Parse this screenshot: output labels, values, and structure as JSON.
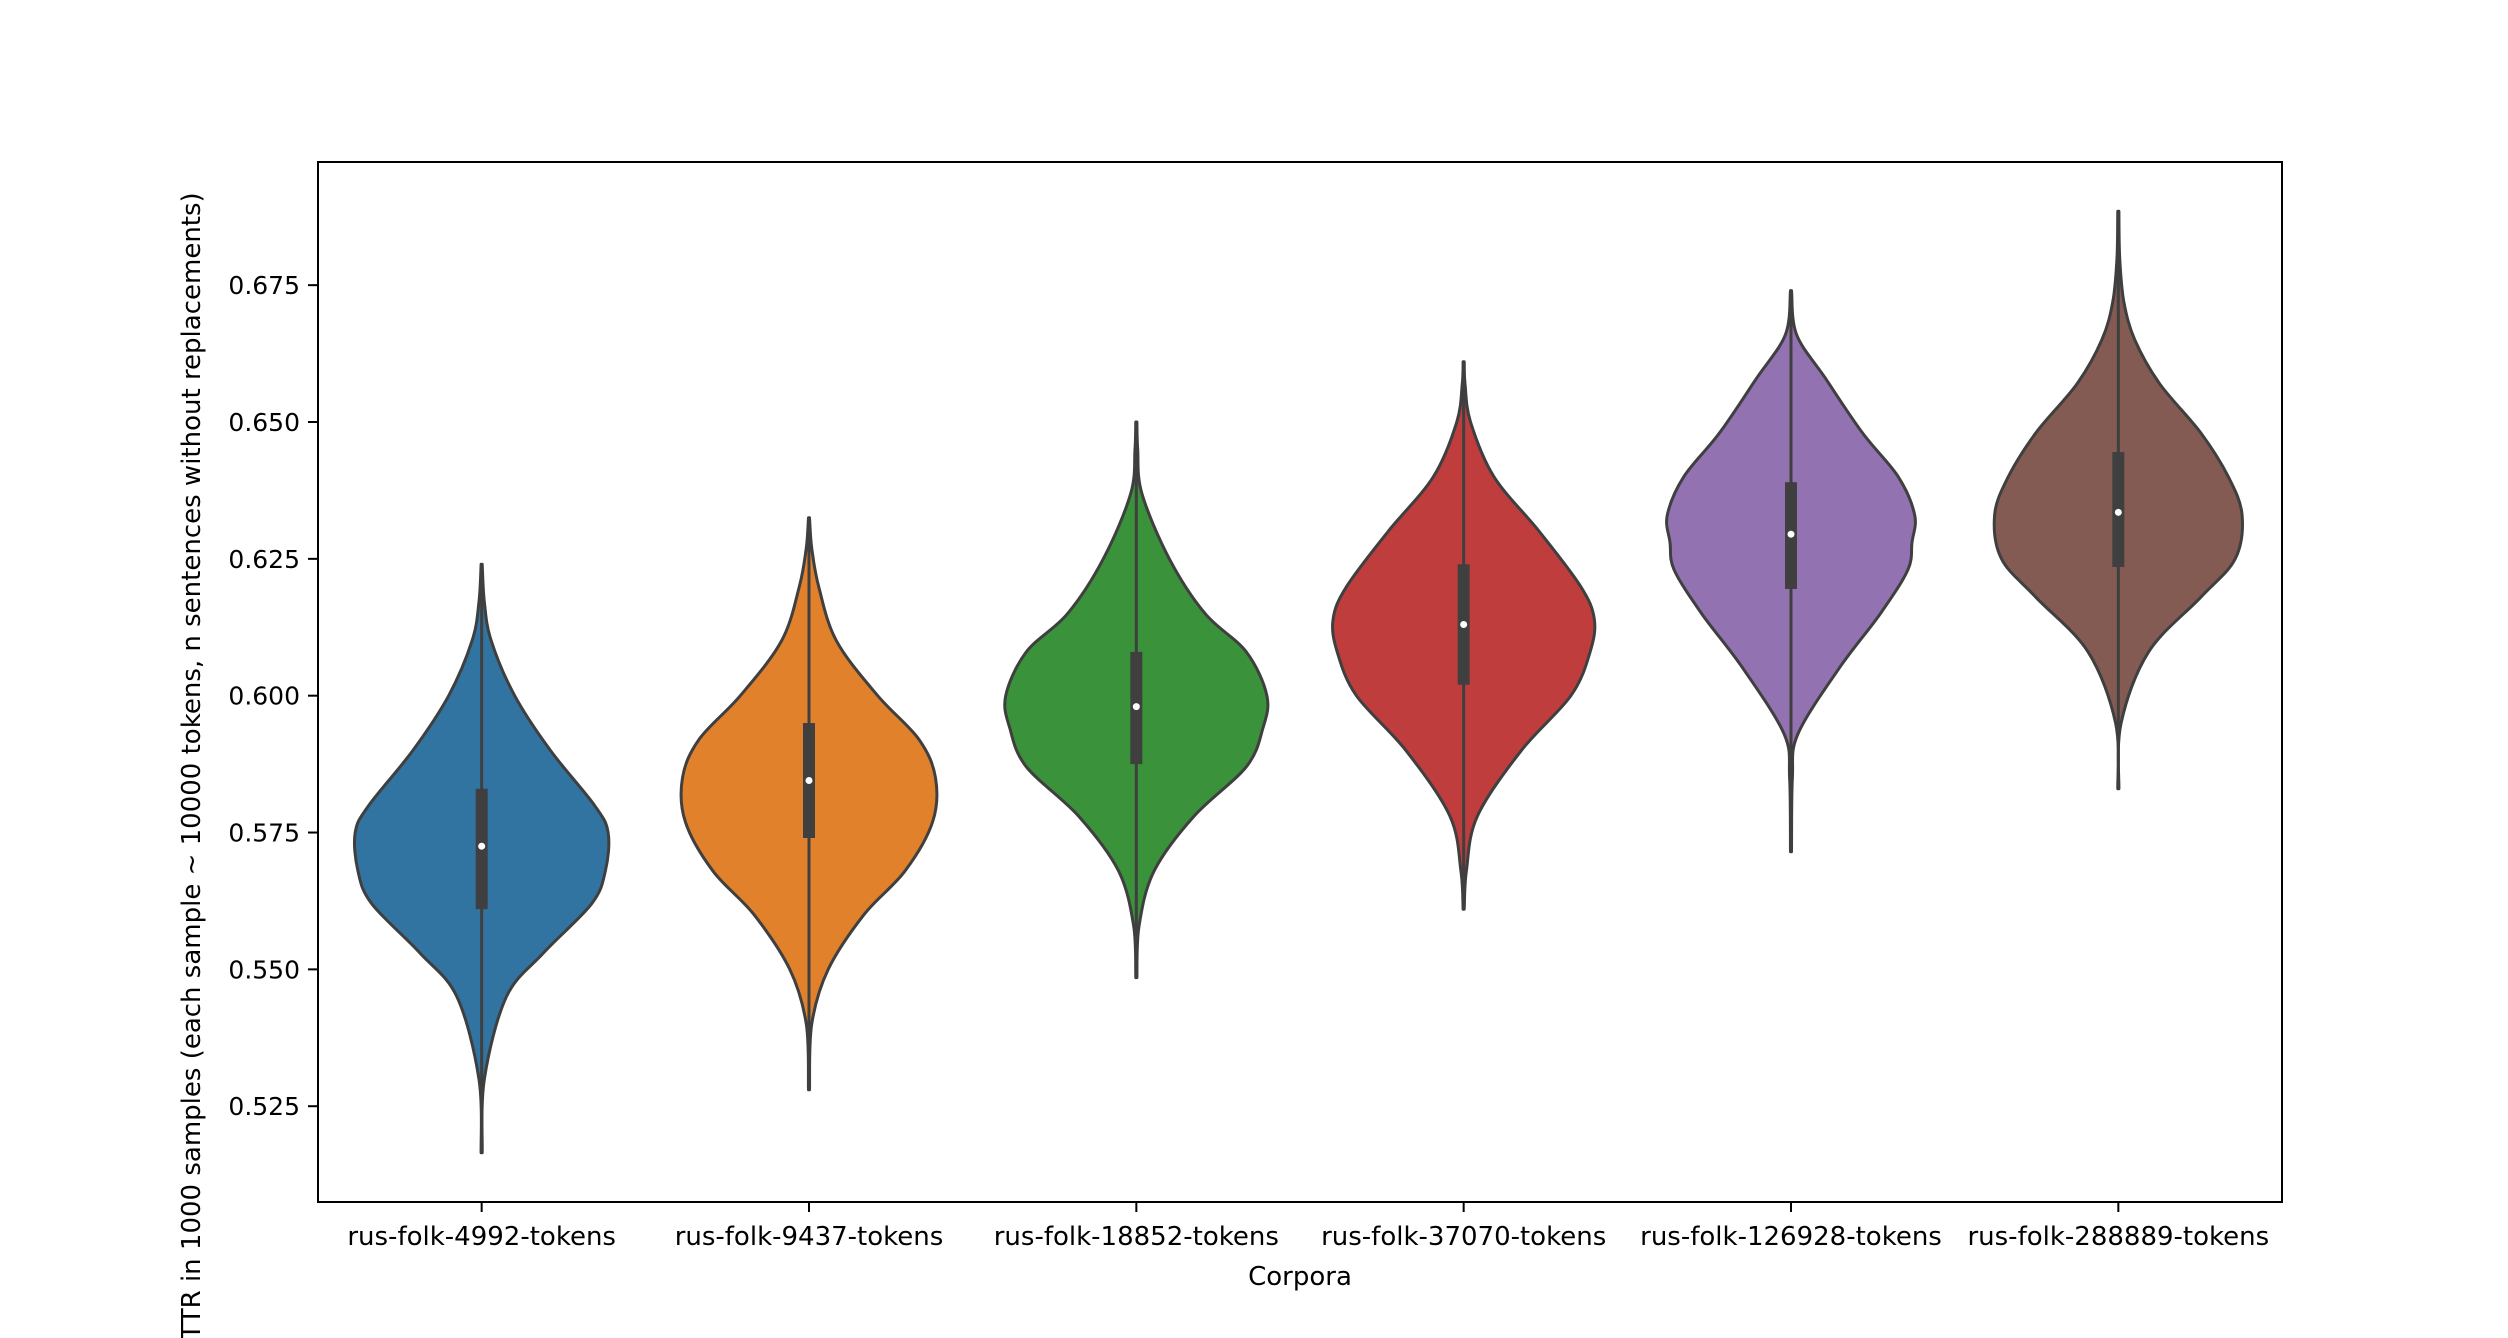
{
  "chart_data": {
    "type": "violin",
    "title": "",
    "xlabel": "Corpora",
    "ylabel": "TTR in 1000 samples (each sample ~ 10000 tokens, n sentences without replacements)",
    "ylim": [
      0.5075,
      0.6975
    ],
    "yticks": [
      0.525,
      0.55,
      0.575,
      0.6,
      0.625,
      0.65,
      0.675
    ],
    "ytick_labels": [
      "0.525",
      "0.550",
      "0.575",
      "0.600",
      "0.625",
      "0.650",
      "0.675"
    ],
    "grid": false,
    "legend": "none",
    "categories": [
      "rus-folk-4992-tokens",
      "rus-folk-9437-tokens",
      "rus-folk-18852-tokens",
      "rus-folk-37070-tokens",
      "rus-folk-126928-tokens",
      "rus-folk-288889-tokens"
    ],
    "colors": [
      "#3274a1",
      "#e1812c",
      "#3a923a",
      "#c03d3e",
      "#9372b2",
      "#845b53"
    ],
    "violins": [
      {
        "category": "rus-folk-4992-tokens",
        "min": 0.5165,
        "q1": 0.561,
        "median": 0.5725,
        "q3": 0.583,
        "max": 0.624,
        "profile": [
          [
            0.5165,
            0.004
          ],
          [
            0.53,
            0.02
          ],
          [
            0.545,
            0.18
          ],
          [
            0.553,
            0.45
          ],
          [
            0.562,
            0.8
          ],
          [
            0.568,
            0.9
          ],
          [
            0.575,
            0.92
          ],
          [
            0.58,
            0.82
          ],
          [
            0.59,
            0.5
          ],
          [
            0.6,
            0.24
          ],
          [
            0.61,
            0.07
          ],
          [
            0.617,
            0.02
          ],
          [
            0.624,
            0.004
          ]
        ]
      },
      {
        "category": "rus-folk-9437-tokens",
        "min": 0.528,
        "q1": 0.574,
        "median": 0.5845,
        "q3": 0.595,
        "max": 0.6325,
        "profile": [
          [
            0.528,
            0.004
          ],
          [
            0.54,
            0.02
          ],
          [
            0.55,
            0.14
          ],
          [
            0.56,
            0.4
          ],
          [
            0.568,
            0.7
          ],
          [
            0.577,
            0.9
          ],
          [
            0.585,
            0.92
          ],
          [
            0.592,
            0.8
          ],
          [
            0.6,
            0.5
          ],
          [
            0.61,
            0.2
          ],
          [
            0.62,
            0.07
          ],
          [
            0.627,
            0.02
          ],
          [
            0.6325,
            0.004
          ]
        ]
      },
      {
        "category": "rus-folk-18852-tokens",
        "min": 0.5485,
        "q1": 0.5875,
        "median": 0.598,
        "q3": 0.608,
        "max": 0.65,
        "profile": [
          [
            0.5485,
            0.004
          ],
          [
            0.558,
            0.02
          ],
          [
            0.568,
            0.13
          ],
          [
            0.578,
            0.42
          ],
          [
            0.587,
            0.8
          ],
          [
            0.594,
            0.92
          ],
          [
            0.6,
            0.95
          ],
          [
            0.608,
            0.8
          ],
          [
            0.615,
            0.5
          ],
          [
            0.625,
            0.24
          ],
          [
            0.637,
            0.04
          ],
          [
            0.645,
            0.01
          ],
          [
            0.65,
            0.004
          ]
        ]
      },
      {
        "category": "rus-folk-37070-tokens",
        "min": 0.561,
        "q1": 0.602,
        "median": 0.613,
        "q3": 0.624,
        "max": 0.661,
        "profile": [
          [
            0.561,
            0.004
          ],
          [
            0.568,
            0.02
          ],
          [
            0.578,
            0.1
          ],
          [
            0.59,
            0.42
          ],
          [
            0.6,
            0.78
          ],
          [
            0.608,
            0.92
          ],
          [
            0.614,
            0.95
          ],
          [
            0.62,
            0.85
          ],
          [
            0.63,
            0.55
          ],
          [
            0.64,
            0.22
          ],
          [
            0.65,
            0.05
          ],
          [
            0.657,
            0.01
          ],
          [
            0.661,
            0.004
          ]
        ]
      },
      {
        "category": "rus-folk-126928-tokens",
        "min": 0.5715,
        "q1": 0.6195,
        "median": 0.6295,
        "q3": 0.639,
        "max": 0.674,
        "profile": [
          [
            0.5715,
            0.004
          ],
          [
            0.585,
            0.01
          ],
          [
            0.593,
            0.05
          ],
          [
            0.605,
            0.35
          ],
          [
            0.615,
            0.65
          ],
          [
            0.623,
            0.85
          ],
          [
            0.628,
            0.88
          ],
          [
            0.633,
            0.9
          ],
          [
            0.64,
            0.78
          ],
          [
            0.648,
            0.52
          ],
          [
            0.658,
            0.25
          ],
          [
            0.666,
            0.04
          ],
          [
            0.674,
            0.004
          ]
        ]
      },
      {
        "category": "rus-folk-288889-tokens",
        "min": 0.583,
        "q1": 0.6235,
        "median": 0.6335,
        "q3": 0.6445,
        "max": 0.6885,
        "profile": [
          [
            0.583,
            0.004
          ],
          [
            0.595,
            0.02
          ],
          [
            0.608,
            0.22
          ],
          [
            0.618,
            0.6
          ],
          [
            0.625,
            0.85
          ],
          [
            0.633,
            0.9
          ],
          [
            0.64,
            0.8
          ],
          [
            0.648,
            0.6
          ],
          [
            0.657,
            0.3
          ],
          [
            0.665,
            0.12
          ],
          [
            0.672,
            0.04
          ],
          [
            0.68,
            0.01
          ],
          [
            0.6885,
            0.004
          ]
        ]
      }
    ]
  }
}
